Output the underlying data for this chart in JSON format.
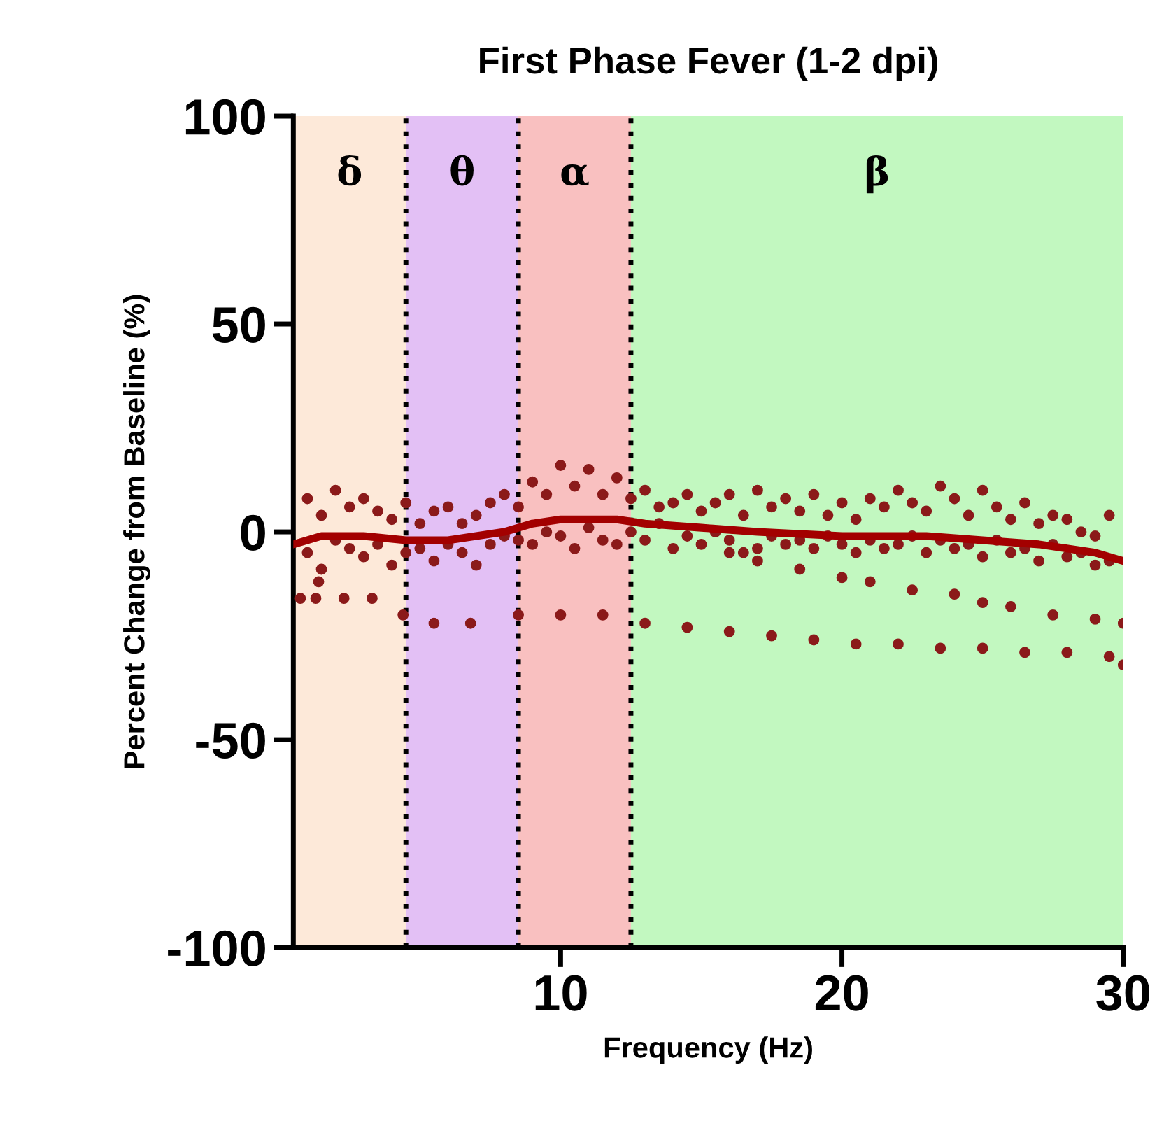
{
  "chart_data": {
    "type": "scatter",
    "title": "First Phase Fever (1-2 dpi)",
    "xlabel": "Frequency (Hz)",
    "ylabel": "Percent Change from Baseline (%)",
    "xlim": [
      0.5,
      30
    ],
    "xticks": [
      10,
      20,
      30
    ],
    "ylim": [
      -100,
      100
    ],
    "yticks": [
      -100,
      -50,
      0,
      50,
      100
    ],
    "grid": false,
    "marker": "circle",
    "bands": [
      {
        "axis": "x",
        "from": 0.5,
        "to": 4.5,
        "label": "δ",
        "color": "#fde9d9"
      },
      {
        "axis": "x",
        "from": 4.5,
        "to": 8.5,
        "label": "θ",
        "color": "#e3c0f5"
      },
      {
        "axis": "x",
        "from": 8.5,
        "to": 12.5,
        "label": "α",
        "color": "#f9c0c0"
      },
      {
        "axis": "x",
        "from": 12.5,
        "to": 30,
        "label": "β",
        "color": "#c2f8c0"
      }
    ],
    "ref_lines": [
      {
        "axis": "x",
        "value": 4.5,
        "color": "#000000",
        "line_style": "dotted"
      },
      {
        "axis": "x",
        "value": 8.5,
        "color": "#000000",
        "line_style": "dotted"
      },
      {
        "axis": "x",
        "value": 12.5,
        "color": "#000000",
        "line_style": "dotted"
      }
    ],
    "series": [
      {
        "color": "#8b1a1a",
        "x": [
          1,
          1.5,
          2,
          2.5,
          3,
          3.5,
          4,
          4.5,
          5,
          5.5,
          6,
          6.5,
          7,
          7.5,
          8,
          8.5,
          9,
          9.5,
          10,
          10.5,
          11,
          11.5,
          12,
          12.5,
          13,
          13.5,
          14,
          14.5,
          15,
          15.5,
          16,
          16.5,
          17,
          17.5,
          18,
          18.5,
          19,
          19.5,
          20,
          20.5,
          21,
          21.5,
          22,
          22.5,
          23,
          23.5,
          24,
          24.5,
          25,
          25.5,
          26,
          26.5,
          27,
          27.5,
          28,
          28.5,
          29,
          29.5,
          1,
          1.5,
          2,
          2.5,
          3,
          3.5,
          4,
          4.5,
          5,
          5.5,
          6,
          6.5,
          7,
          7.5,
          8,
          8.5,
          9,
          9.5,
          10,
          10.5,
          11,
          11.5,
          12,
          12.5,
          13,
          13.5,
          14,
          14.5,
          15,
          15.5,
          16,
          16.5,
          17,
          17.5,
          18,
          18.5,
          19,
          19.5,
          20,
          20.5,
          21,
          21.5,
          22,
          22.5,
          23,
          23.5,
          24,
          24.5,
          25,
          25.5,
          26,
          26.5,
          27,
          27.5,
          28,
          28.5,
          29,
          29.5,
          1.4,
          0.75,
          1.3,
          2.3,
          3.3,
          4.4,
          5.5,
          6.8,
          8.5,
          10,
          11.5,
          13,
          14.5,
          16,
          17.5,
          19,
          20.5,
          22,
          23.5,
          25,
          26.5,
          28,
          29.5,
          30,
          16,
          17,
          18.5,
          20,
          21,
          22.5,
          24,
          25,
          26,
          27.5,
          29,
          30
        ],
        "values": [
          8,
          4,
          10,
          6,
          8,
          5,
          3,
          7,
          2,
          5,
          6,
          2,
          4,
          7,
          9,
          6,
          12,
          9,
          16,
          11,
          15,
          9,
          13,
          8,
          10,
          6,
          7,
          9,
          5,
          7,
          9,
          4,
          10,
          6,
          8,
          5,
          9,
          4,
          7,
          3,
          8,
          6,
          10,
          7,
          5,
          11,
          8,
          4,
          10,
          6,
          3,
          7,
          2,
          4,
          3,
          0,
          -1,
          4,
          -5,
          -9,
          -2,
          -4,
          -6,
          -3,
          -8,
          -5,
          -4,
          -7,
          -3,
          -5,
          -8,
          -3,
          -1,
          -2,
          -3,
          0,
          -1,
          -4,
          1,
          -2,
          -3,
          0,
          -2,
          2,
          -4,
          -1,
          -3,
          0,
          -2,
          -5,
          -4,
          -1,
          -3,
          -2,
          -4,
          -1,
          -3,
          -5,
          -2,
          -4,
          -3,
          -1,
          -5,
          -2,
          -4,
          -3,
          -6,
          -2,
          -5,
          -4,
          -7,
          -3,
          -6,
          -5,
          -8,
          -7,
          -12,
          -16,
          -16,
          -16,
          -16,
          -20,
          -22,
          -22,
          -20,
          -20,
          -20,
          -22,
          -23,
          -24,
          -25,
          -26,
          -27,
          -27,
          -28,
          -28,
          -29,
          -29,
          -30,
          -32,
          -5,
          -7,
          -9,
          -11,
          -12,
          -14,
          -15,
          -17,
          -18,
          -20,
          -21,
          -22
        ]
      },
      {
        "type": "line",
        "color": "#a30000",
        "marker": "none",
        "x": [
          0.5,
          1.5,
          3,
          4.5,
          6,
          7,
          8,
          9,
          10,
          11,
          12,
          13,
          15,
          17,
          20,
          23,
          25,
          27,
          29,
          30
        ],
        "values": [
          -3,
          -1,
          -1,
          -2,
          -2,
          -1,
          0,
          2,
          3,
          3,
          3,
          2,
          1,
          0,
          -1,
          -1,
          -2,
          -3,
          -5,
          -7
        ]
      }
    ]
  }
}
